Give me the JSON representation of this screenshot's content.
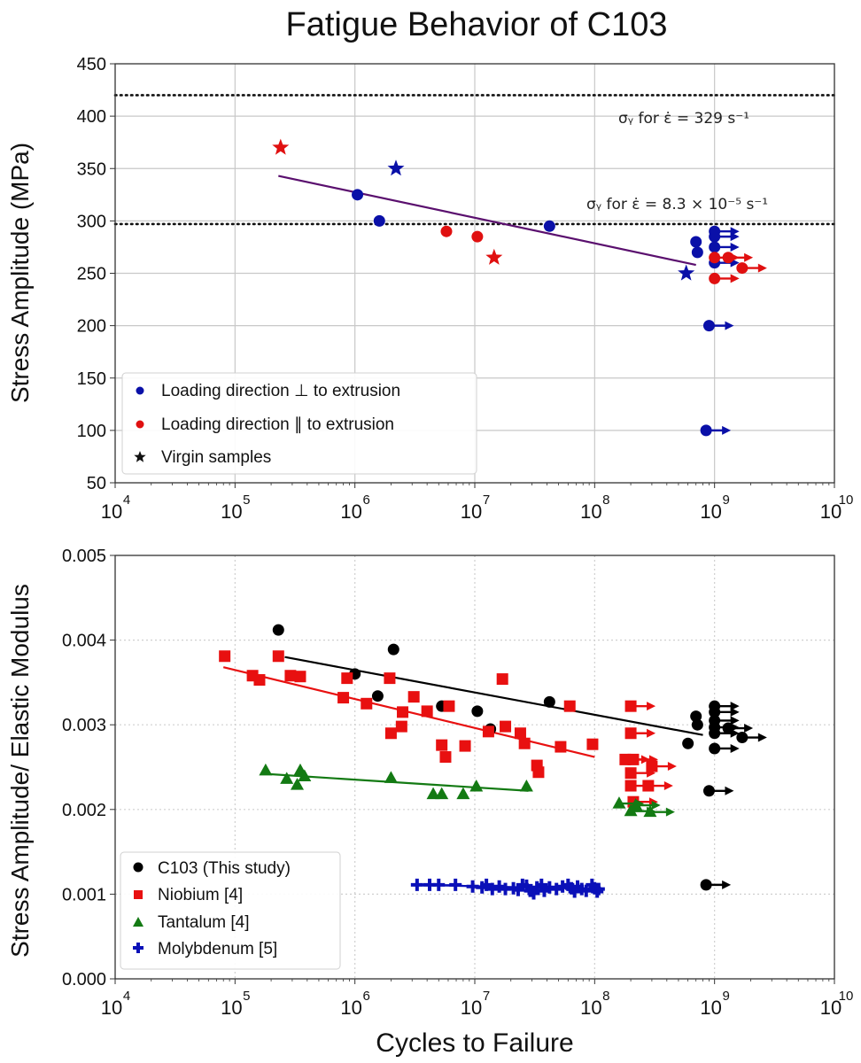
{
  "title": "Fatigue Behavior of C103",
  "chart_data": [
    {
      "type": "scatter",
      "id": "top",
      "title": "Fatigue Behavior of C103",
      "xlabel": "",
      "ylabel": "Stress Amplitude (MPa)",
      "xscale": "log",
      "xlim": [
        10000,
        10000000000
      ],
      "ylim": [
        50,
        450
      ],
      "xticks": [
        {
          "base": "10",
          "exp": "4"
        },
        {
          "base": "10",
          "exp": "5"
        },
        {
          "base": "10",
          "exp": "6"
        },
        {
          "base": "10",
          "exp": "7"
        },
        {
          "base": "10",
          "exp": "8"
        },
        {
          "base": "10",
          "exp": "9"
        },
        {
          "base": "10",
          "exp": "10"
        }
      ],
      "yticks": [
        "450",
        "400",
        "350",
        "300",
        "250",
        "200",
        "150",
        "100",
        "50"
      ],
      "ytick_values": [
        450,
        400,
        350,
        300,
        250,
        200,
        150,
        100,
        50
      ],
      "grid": true,
      "legend_position": "lower-left",
      "legend": [
        {
          "label": "Loading direction ⊥ to extrusion",
          "marker": "circle",
          "color": "#0a10a8"
        },
        {
          "label": "Loading direction ∥ to extrusion",
          "marker": "circle",
          "color": "#e01010"
        },
        {
          "label": "Virgin samples",
          "marker": "star",
          "color": "#111111"
        }
      ],
      "hlines": [
        {
          "y": 420,
          "style": "dotted",
          "label": "σᵧ for ε̇ = 329 s⁻¹"
        },
        {
          "y": 297,
          "style": "dotted",
          "label": "σᵧ for ε̇ = 8.3 × 10⁻⁵ s⁻¹"
        }
      ],
      "fit_line": {
        "color": "#5a0f6e",
        "points": [
          [
            230000,
            343
          ],
          [
            700000000,
            258
          ]
        ]
      },
      "series": [
        {
          "name": "perpendicular",
          "color": "#0a10a8",
          "marker": "circle",
          "points": [
            [
              1050000,
              325
            ],
            [
              1600000,
              300
            ],
            [
              42000000,
              295
            ],
            [
              700000000,
              280
            ],
            [
              720000000,
              270
            ]
          ]
        },
        {
          "name": "perpendicular-runout",
          "color": "#0a10a8",
          "marker": "circle",
          "runout": true,
          "points": [
            [
              1000000000,
              290
            ],
            [
              1000000000,
              285
            ],
            [
              1000000000,
              275
            ],
            [
              1000000000,
              260
            ],
            [
              900000000,
              200
            ],
            [
              850000000,
              100
            ]
          ]
        },
        {
          "name": "parallel",
          "color": "#e01010",
          "marker": "circle",
          "points": [
            [
              5800000,
              290
            ],
            [
              10500000,
              285
            ]
          ]
        },
        {
          "name": "parallel-runout",
          "color": "#e01010",
          "marker": "circle",
          "runout": true,
          "points": [
            [
              1000000000,
              265
            ],
            [
              1300000000,
              265
            ],
            [
              1700000000,
              255
            ],
            [
              1000000000,
              245
            ]
          ]
        },
        {
          "name": "virgin-perpendicular",
          "color": "#0a10a8",
          "marker": "star",
          "points": [
            [
              2200000,
              350
            ],
            [
              580000000,
              250
            ]
          ]
        },
        {
          "name": "virgin-parallel",
          "color": "#e01010",
          "marker": "star",
          "points": [
            [
              240000,
              370
            ],
            [
              14500000,
              265
            ]
          ]
        }
      ]
    },
    {
      "type": "scatter",
      "id": "bottom",
      "title": "",
      "xlabel": "Cycles to Failure",
      "ylabel": "Stress Amplitude/ Elastic Modulus",
      "xscale": "log",
      "xlim": [
        10000,
        10000000000
      ],
      "ylim": [
        0,
        0.005
      ],
      "xticks": [
        {
          "base": "10",
          "exp": "4"
        },
        {
          "base": "10",
          "exp": "5"
        },
        {
          "base": "10",
          "exp": "6"
        },
        {
          "base": "10",
          "exp": "7"
        },
        {
          "base": "10",
          "exp": "8"
        },
        {
          "base": "10",
          "exp": "9"
        },
        {
          "base": "10",
          "exp": "10"
        }
      ],
      "yticks": [
        "0.005",
        "0.004",
        "0.003",
        "0.002",
        "0.001",
        "0.000"
      ],
      "ytick_values": [
        0.005,
        0.004,
        0.003,
        0.002,
        0.001,
        0.0
      ],
      "grid": true,
      "grid_style": "dotted",
      "legend_position": "lower-left",
      "legend": [
        {
          "label": "C103 (This study)",
          "marker": "circle",
          "color": "#000000"
        },
        {
          "label": "Niobium [4]",
          "marker": "square",
          "color": "#e81010"
        },
        {
          "label": "Tantalum [4]",
          "marker": "triangle",
          "color": "#137a13"
        },
        {
          "label": "Molybdenum [5]",
          "marker": "plus",
          "color": "#0a10b8"
        }
      ],
      "fit_lines": [
        {
          "name": "C103",
          "color": "#000000",
          "points": [
            [
              260000,
              0.0038
            ],
            [
              800000000,
              0.00288
            ]
          ]
        },
        {
          "name": "Niobium",
          "color": "#e81010",
          "points": [
            [
              80000,
              0.00368
            ],
            [
              100000000,
              0.00262
            ]
          ]
        },
        {
          "name": "Tantalum",
          "color": "#137a13",
          "points": [
            [
              180000,
              0.00242
            ],
            [
              28000000,
              0.00222
            ]
          ]
        },
        {
          "name": "Molybdenum",
          "color": "#0a10b8",
          "points": [
            [
              3300000,
              0.00111
            ],
            [
              110000000,
              0.00106
            ]
          ]
        }
      ],
      "series": [
        {
          "name": "C103",
          "color": "#000000",
          "marker": "circle",
          "points": [
            [
              230000,
              0.00412
            ],
            [
              1000000,
              0.0036
            ],
            [
              1550000,
              0.00334
            ],
            [
              2100000,
              0.00389
            ],
            [
              5300000,
              0.00322
            ],
            [
              10500000,
              0.00316
            ],
            [
              13500000,
              0.00295
            ],
            [
              42000000,
              0.00327
            ],
            [
              600000000,
              0.00278
            ],
            [
              700000000,
              0.0031
            ],
            [
              720000000,
              0.003
            ]
          ]
        },
        {
          "name": "C103-runout",
          "color": "#000000",
          "marker": "circle",
          "runout": true,
          "points": [
            [
              1000000000,
              0.00322
            ],
            [
              1000000000,
              0.00315
            ],
            [
              1000000000,
              0.00305
            ],
            [
              1000000000,
              0.00297
            ],
            [
              1000000000,
              0.0029
            ],
            [
              1300000000,
              0.00296
            ],
            [
              1700000000,
              0.00285
            ],
            [
              1000000000,
              0.00272
            ],
            [
              900000000,
              0.00222
            ],
            [
              850000000,
              0.00111
            ]
          ]
        },
        {
          "name": "Niobium",
          "color": "#e81010",
          "marker": "square",
          "points": [
            [
              82000,
              0.00381
            ],
            [
              140000,
              0.00358
            ],
            [
              160000,
              0.00353
            ],
            [
              230000,
              0.00381
            ],
            [
              290000,
              0.00358
            ],
            [
              350000,
              0.00357
            ],
            [
              800000,
              0.00332
            ],
            [
              860000,
              0.00355
            ],
            [
              1250000,
              0.00325
            ],
            [
              1950000,
              0.00355
            ],
            [
              2000000,
              0.0029
            ],
            [
              2450000,
              0.00298
            ],
            [
              2500000,
              0.00315
            ],
            [
              3100000,
              0.00333
            ],
            [
              4000000,
              0.00316
            ],
            [
              5300000,
              0.00276
            ],
            [
              5700000,
              0.00262
            ],
            [
              6100000,
              0.00322
            ],
            [
              8300000,
              0.00275
            ],
            [
              13000000,
              0.00292
            ],
            [
              17000000,
              0.00354
            ],
            [
              18000000,
              0.00298
            ],
            [
              24000000,
              0.0029
            ],
            [
              26000000,
              0.00278
            ],
            [
              33000000,
              0.00252
            ],
            [
              34000000,
              0.00244
            ],
            [
              52000000,
              0.00274
            ],
            [
              62000000,
              0.00322
            ],
            [
              96000000,
              0.00277
            ]
          ]
        },
        {
          "name": "Niobium-runout",
          "color": "#e81010",
          "marker": "square",
          "runout": true,
          "points": [
            [
              200000000,
              0.00322
            ],
            [
              200000000,
              0.0029
            ],
            [
              180000000,
              0.00259
            ],
            [
              210000000,
              0.00259
            ],
            [
              300000000,
              0.00251
            ],
            [
              200000000,
              0.00243
            ],
            [
              200000000,
              0.00228
            ],
            [
              280000000,
              0.00228
            ],
            [
              210000000,
              0.00209
            ]
          ]
        },
        {
          "name": "Tantalum",
          "color": "#137a13",
          "marker": "triangle",
          "points": [
            [
              180000,
              0.00246
            ],
            [
              270000,
              0.00236
            ],
            [
              350000,
              0.00246
            ],
            [
              330000,
              0.00229
            ],
            [
              380000,
              0.00239
            ],
            [
              2000000,
              0.00237
            ],
            [
              4500000,
              0.00218
            ],
            [
              5300000,
              0.00218
            ],
            [
              8000000,
              0.00218
            ],
            [
              10300000,
              0.00227
            ],
            [
              27000000,
              0.00227
            ]
          ]
        },
        {
          "name": "Tantalum-runout",
          "color": "#137a13",
          "marker": "triangle",
          "runout": true,
          "points": [
            [
              160000000,
              0.00207
            ],
            [
              200000000,
              0.00198
            ],
            [
              220000000,
              0.00205
            ],
            [
              290000000,
              0.00197
            ]
          ]
        },
        {
          "name": "Molybdenum",
          "color": "#0a10b8",
          "marker": "plus",
          "points": [
            [
              3300000,
              0.00111
            ],
            [
              4200000,
              0.00111
            ],
            [
              5000000,
              0.00111
            ],
            [
              6900000,
              0.00111
            ],
            [
              9600000,
              0.00109
            ],
            [
              11500000,
              0.00108
            ],
            [
              12500000,
              0.00111
            ],
            [
              14000000,
              0.00106
            ],
            [
              16000000,
              0.00109
            ],
            [
              18000000,
              0.00106
            ],
            [
              21000000,
              0.00107
            ],
            [
              23000000,
              0.00105
            ],
            [
              25000000,
              0.00111
            ],
            [
              27000000,
              0.0011
            ],
            [
              29000000,
              0.00104
            ],
            [
              31000000,
              0.00101
            ],
            [
              33000000,
              0.00108
            ],
            [
              36000000,
              0.00111
            ],
            [
              38000000,
              0.00104
            ],
            [
              42000000,
              0.00108
            ],
            [
              48000000,
              0.00106
            ],
            [
              54000000,
              0.00109
            ],
            [
              60000000,
              0.00111
            ],
            [
              64000000,
              0.00107
            ],
            [
              68000000,
              0.00103
            ],
            [
              72000000,
              0.00109
            ],
            [
              78000000,
              0.00106
            ],
            [
              85000000,
              0.00104
            ],
            [
              95000000,
              0.00111
            ],
            [
              100000000,
              0.00107
            ],
            [
              105000000,
              0.00103
            ],
            [
              108000000,
              0.00106
            ]
          ]
        }
      ]
    }
  ]
}
